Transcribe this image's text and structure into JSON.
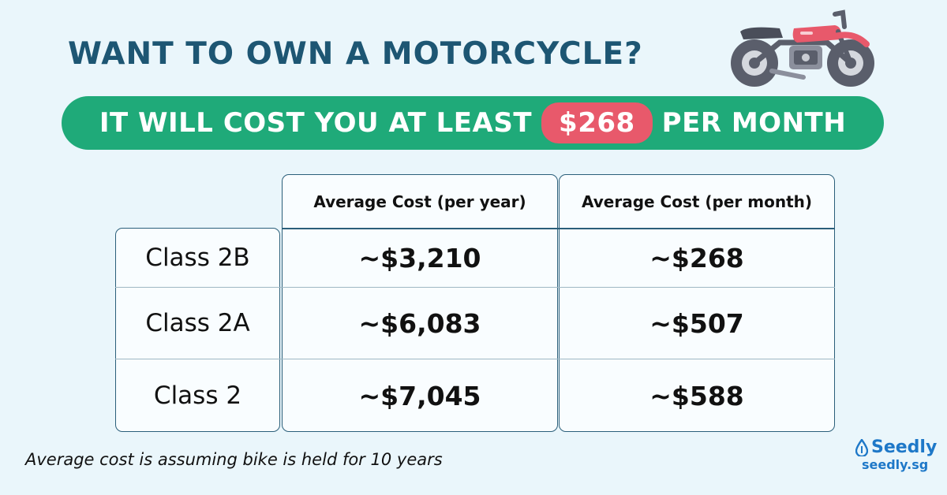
{
  "title": "WANT TO OWN A MOTORCYCLE?",
  "banner": {
    "prefix": "IT WILL COST YOU AT LEAST",
    "amount": "$268",
    "suffix": "PER MONTH"
  },
  "table": {
    "columns": [
      "Average Cost (per year)",
      "Average Cost (per month)"
    ],
    "rows": [
      {
        "label": "Class 2B",
        "per_year": "~$3,210",
        "per_month": "~$268"
      },
      {
        "label": "Class 2A",
        "per_year": "~$6,083",
        "per_month": "~$507"
      },
      {
        "label": "Class 2",
        "per_year": "~$7,045",
        "per_month": "~$588"
      }
    ]
  },
  "footnote": "Average cost is assuming bike is held for 10 years",
  "brand": {
    "name": "Seedly",
    "url": "seedly.sg"
  },
  "colors": {
    "background": "#eaf6fb",
    "title": "#1d5673",
    "banner": "#1faa79",
    "highlight": "#e8596b",
    "brand": "#1e78c8"
  }
}
